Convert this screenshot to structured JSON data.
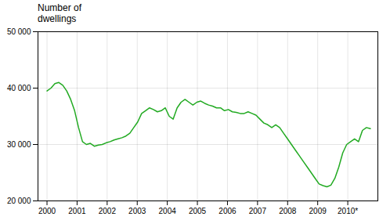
{
  "chart_data": {
    "type": "line",
    "title": "Number of\ndwellings",
    "color": "#22aa22",
    "x": [
      2000,
      2000.1311,
      2000.2622,
      2000.3933,
      2000.5244,
      2000.6555,
      2000.7866,
      2000.9177,
      2001.0488,
      2001.1799,
      2001.311,
      2001.4421,
      2001.5732,
      2001.7043,
      2001.8354,
      2001.9665,
      2002.0976,
      2002.2287,
      2002.3598,
      2002.4909,
      2002.622,
      2002.753,
      2002.8841,
      2003.0152,
      2003.1463,
      2003.2774,
      2003.4085,
      2003.5396,
      2003.6707,
      2003.8018,
      2003.9329,
      2004.064,
      2004.1951,
      2004.3262,
      2004.4573,
      2004.5884,
      2004.7195,
      2004.8506,
      2004.9817,
      2005.1128,
      2005.2439,
      2005.375,
      2005.5061,
      2005.6372,
      2005.7683,
      2005.8994,
      2006.0305,
      2006.1616,
      2006.2927,
      2006.4238,
      2006.5549,
      2006.686,
      2006.8171,
      2006.9482,
      2007.0793,
      2007.2104,
      2007.3415,
      2007.4726,
      2007.6037,
      2007.7348,
      2007.8659,
      2007.997,
      2008.128,
      2008.2591,
      2008.3902,
      2008.5213,
      2008.6524,
      2008.7835,
      2008.9146,
      2009.0457,
      2009.1768,
      2009.3079,
      2009.439,
      2009.5701,
      2009.7012,
      2009.8323,
      2009.9634,
      2010.0945,
      2010.2256,
      2010.3567,
      2010.4878,
      2010.6189,
      2010.75
    ],
    "values": [
      39500,
      40000,
      40800,
      41000,
      40500,
      39500,
      38000,
      36000,
      33000,
      30500,
      30000,
      30200,
      29700,
      29900,
      30000,
      30300,
      30500,
      30800,
      31000,
      31200,
      31500,
      32000,
      33000,
      34000,
      35500,
      36000,
      36500,
      36200,
      35800,
      36000,
      36500,
      35000,
      34500,
      36500,
      37500,
      38000,
      37500,
      37000,
      37500,
      37700,
      37300,
      37000,
      36800,
      36500,
      36500,
      36000,
      36200,
      35800,
      35700,
      35500,
      35500,
      35800,
      35500,
      35200,
      34500,
      33800,
      33500,
      33000,
      33500,
      33000,
      32000,
      31000,
      30000,
      29000,
      28000,
      27000,
      26000,
      25000,
      24000,
      23000,
      22700,
      22500,
      22800,
      24000,
      26000,
      28500,
      30000,
      30500,
      31000,
      30500,
      32500,
      33000,
      32800
    ],
    "xlim": [
      1999.7,
      2011.0
    ],
    "xticks": [
      2000,
      2001,
      2002,
      2003,
      2004,
      2005,
      2006,
      2007,
      2008,
      2009,
      {
        "value": 2010,
        "label": "2010*"
      }
    ],
    "ylim": [
      20000,
      50000
    ],
    "yticks": [
      {
        "value": 20000,
        "label": "20 000"
      },
      {
        "value": 30000,
        "label": "30 000"
      },
      {
        "value": 40000,
        "label": "40 000"
      },
      {
        "value": 50000,
        "label": "50 000"
      }
    ],
    "grid": true
  }
}
